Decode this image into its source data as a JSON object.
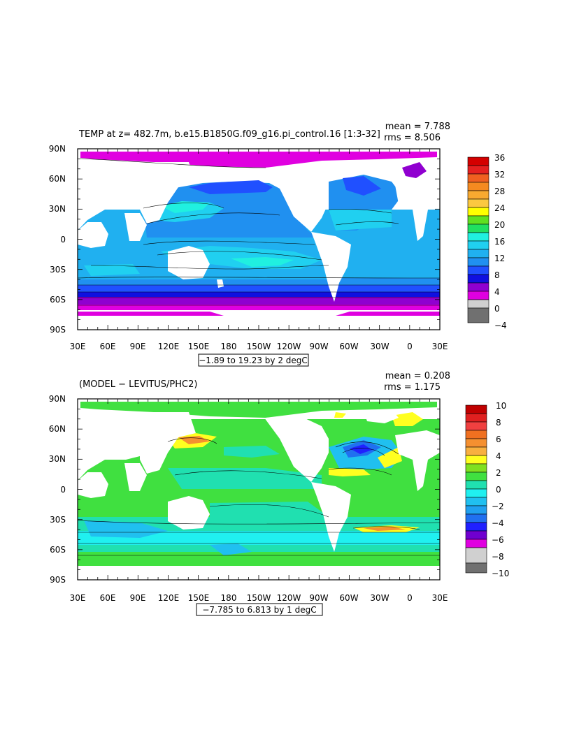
{
  "panels": [
    {
      "id": "top",
      "title": "TEMP at z= 482.7m, b.e15.B1850G.f09_g16.pi_control.16 [1:3-32]",
      "stats": {
        "mean": "mean = 7.788",
        "rms": "rms = 8.506"
      },
      "range_label": "−1.89 to 19.23 by 2 degC",
      "colorbar": {
        "labels": [
          "36",
          "32",
          "28",
          "24",
          "20",
          "16",
          "12",
          "8",
          "4",
          "0",
          "−4"
        ],
        "colors": [
          "#d40000",
          "#e52020",
          "#f06020",
          "#f58a20",
          "#f8aa30",
          "#fbc840",
          "#ffff00",
          "#60e020",
          "#20e060",
          "#20f0e0",
          "#20d0f0",
          "#20b0f0",
          "#2090f0",
          "#2050ff",
          "#1010e0",
          "#9000d0",
          "#e000e0",
          "#d0d0d0",
          "#707070"
        ]
      }
    },
    {
      "id": "bottom",
      "title": "(MODEL − LEVITUS/PHC2)",
      "stats": {
        "mean": "mean = 0.208",
        "rms": "rms = 1.175"
      },
      "range_label": "−7.785 to 6.813 by 1 degC",
      "colorbar": {
        "labels": [
          "10",
          "8",
          "6",
          "4",
          "2",
          "0",
          "−2",
          "−4",
          "−6",
          "−8",
          "−10"
        ],
        "colors": [
          "#c00000",
          "#e02020",
          "#f04040",
          "#f07020",
          "#f59030",
          "#f8b040",
          "#ffff20",
          "#80e020",
          "#40e040",
          "#20e0b0",
          "#20f0f0",
          "#20c0f0",
          "#20a0f0",
          "#2070f0",
          "#2020ff",
          "#7000d0",
          "#e000e0",
          "#d0d0d0",
          "#707070"
        ]
      }
    }
  ],
  "axes": {
    "lat_labels": [
      "90N",
      "60N",
      "30N",
      "0",
      "30S",
      "60S",
      "90S"
    ],
    "lon_labels": [
      "30E",
      "60E",
      "90E",
      "120E",
      "150E",
      "180",
      "150W",
      "120W",
      "90W",
      "60W",
      "30W",
      "0",
      "30E"
    ]
  },
  "colors": {
    "land": "#ffffff",
    "top_cold_south": "#e000e0",
    "top_ocean": "#2090f0",
    "bottom_ocean": "#40e040"
  }
}
